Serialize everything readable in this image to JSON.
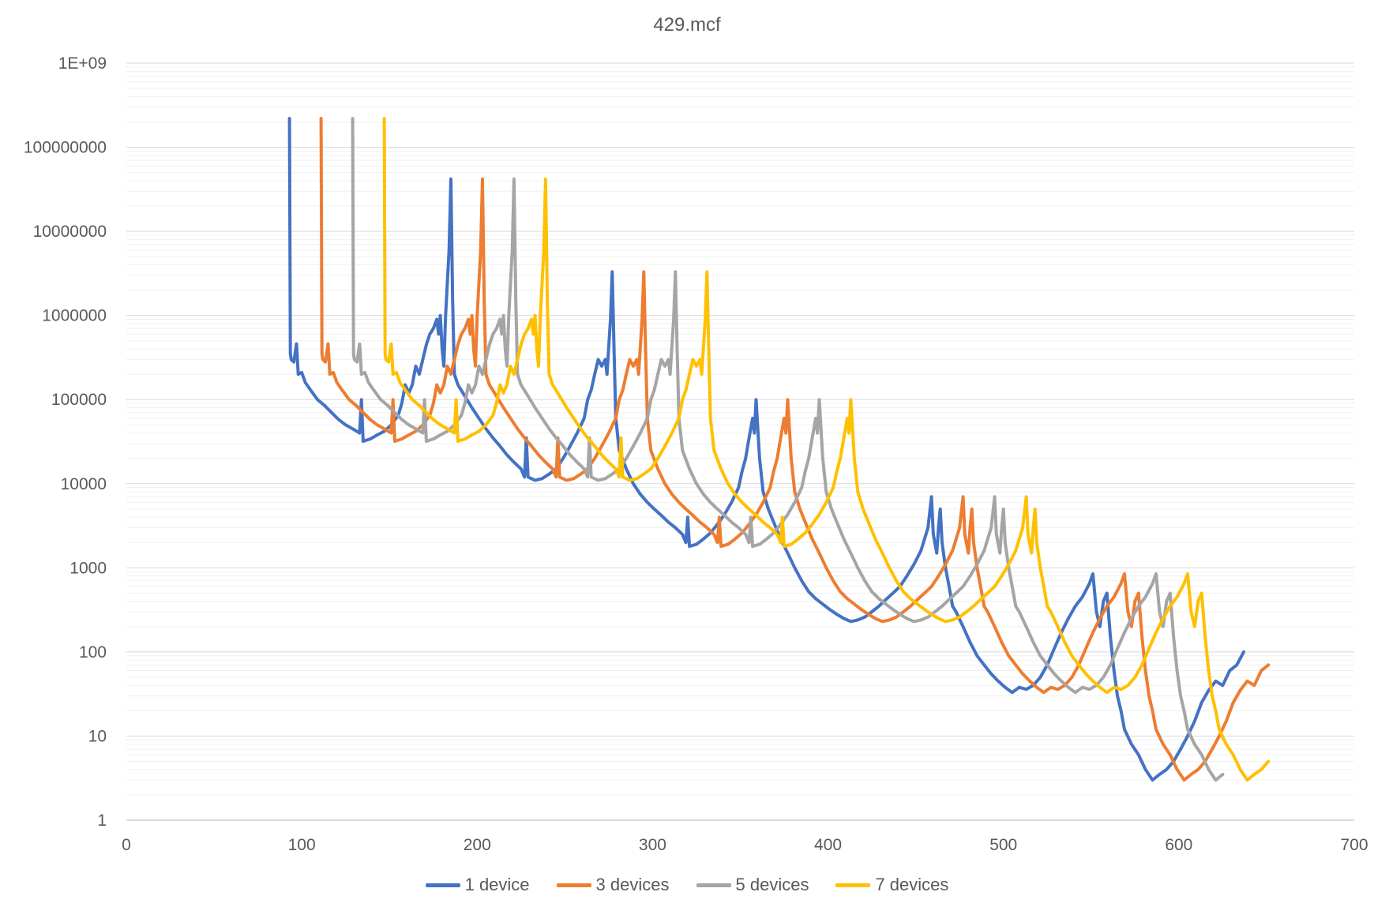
{
  "chart_data": {
    "type": "line",
    "title": "429.mcf",
    "xlabel": "",
    "ylabel": "",
    "xlim": [
      0,
      700
    ],
    "x_ticks": [
      "0",
      "100",
      "200",
      "300",
      "400",
      "500",
      "600",
      "700"
    ],
    "y_scale": "log",
    "ylim": [
      1,
      1000000000
    ],
    "y_ticks": [
      "1",
      "10",
      "100",
      "1000",
      "10000",
      "100000",
      "1000000",
      "10000000",
      "100000000",
      "1E+09"
    ],
    "grid": true,
    "legend": "bottom",
    "base_profile": [
      [
        0,
        220000000
      ],
      [
        0.5,
        350000
      ],
      [
        1,
        300000
      ],
      [
        2.5,
        280000
      ],
      [
        4,
        460000
      ],
      [
        5,
        200000
      ],
      [
        7,
        210000
      ],
      [
        9,
        160000
      ],
      [
        12,
        130000
      ],
      [
        16,
        100000
      ],
      [
        20,
        85000
      ],
      [
        24,
        70000
      ],
      [
        28,
        58000
      ],
      [
        32,
        50000
      ],
      [
        36,
        45000
      ],
      [
        40,
        40000
      ],
      [
        41,
        100000
      ],
      [
        42,
        32000
      ],
      [
        46,
        34000
      ],
      [
        50,
        38000
      ],
      [
        54,
        42000
      ],
      [
        58,
        50000
      ],
      [
        62,
        65000
      ],
      [
        64,
        90000
      ],
      [
        66,
        150000
      ],
      [
        68,
        120000
      ],
      [
        70,
        150000
      ],
      [
        72,
        250000
      ],
      [
        74,
        200000
      ],
      [
        76,
        300000
      ],
      [
        78,
        450000
      ],
      [
        80,
        600000
      ],
      [
        82,
        700000
      ],
      [
        84,
        900000
      ],
      [
        85,
        600000
      ],
      [
        86,
        1000000
      ],
      [
        87,
        400000
      ],
      [
        88,
        250000
      ],
      [
        89,
        1000000
      ],
      [
        91,
        6000000
      ],
      [
        92,
        42000000
      ],
      [
        93,
        1500000
      ],
      [
        94,
        200000
      ],
      [
        96,
        150000
      ],
      [
        100,
        110000
      ],
      [
        104,
        80000
      ],
      [
        108,
        60000
      ],
      [
        112,
        45000
      ],
      [
        116,
        35000
      ],
      [
        120,
        28000
      ],
      [
        124,
        22000
      ],
      [
        128,
        18000
      ],
      [
        132,
        15000
      ],
      [
        134,
        12000
      ],
      [
        135,
        35000
      ],
      [
        136,
        12000
      ],
      [
        140,
        11000
      ],
      [
        144,
        11500
      ],
      [
        148,
        13000
      ],
      [
        152,
        15000
      ],
      [
        156,
        20000
      ],
      [
        160,
        28000
      ],
      [
        164,
        40000
      ],
      [
        168,
        60000
      ],
      [
        170,
        100000
      ],
      [
        172,
        130000
      ],
      [
        174,
        200000
      ],
      [
        176,
        300000
      ],
      [
        178,
        250000
      ],
      [
        180,
        300000
      ],
      [
        181,
        200000
      ],
      [
        183,
        900000
      ],
      [
        184,
        3300000
      ],
      [
        185,
        400000
      ],
      [
        186,
        60000
      ],
      [
        188,
        25000
      ],
      [
        192,
        15000
      ],
      [
        196,
        10000
      ],
      [
        200,
        7500
      ],
      [
        204,
        6000
      ],
      [
        208,
        5000
      ],
      [
        212,
        4200
      ],
      [
        216,
        3500
      ],
      [
        220,
        3000
      ],
      [
        224,
        2500
      ],
      [
        226,
        2000
      ],
      [
        227,
        4000
      ],
      [
        228,
        1800
      ],
      [
        232,
        1900
      ],
      [
        236,
        2200
      ],
      [
        240,
        2600
      ],
      [
        244,
        3300
      ],
      [
        248,
        4300
      ],
      [
        252,
        6000
      ],
      [
        256,
        9000
      ],
      [
        258,
        14000
      ],
      [
        260,
        20000
      ],
      [
        262,
        35000
      ],
      [
        264,
        60000
      ],
      [
        265,
        40000
      ],
      [
        266,
        100000
      ],
      [
        268,
        20000
      ],
      [
        270,
        8000
      ],
      [
        273,
        5000
      ],
      [
        276,
        3500
      ],
      [
        280,
        2200
      ],
      [
        284,
        1500
      ],
      [
        288,
        1000
      ],
      [
        292,
        700
      ],
      [
        296,
        520
      ],
      [
        300,
        430
      ],
      [
        304,
        370
      ],
      [
        308,
        320
      ],
      [
        312,
        280
      ],
      [
        316,
        250
      ],
      [
        320,
        230
      ],
      [
        324,
        240
      ],
      [
        328,
        260
      ],
      [
        332,
        300
      ],
      [
        336,
        350
      ],
      [
        340,
        420
      ],
      [
        344,
        500
      ],
      [
        348,
        600
      ],
      [
        352,
        800
      ],
      [
        356,
        1100
      ],
      [
        360,
        1600
      ],
      [
        364,
        3000
      ],
      [
        366,
        7000
      ],
      [
        367,
        2500
      ],
      [
        369,
        1500
      ],
      [
        370,
        3000
      ],
      [
        371,
        5000
      ],
      [
        372,
        2000
      ],
      [
        374,
        1000
      ],
      [
        376,
        600
      ],
      [
        378,
        350
      ],
      [
        380,
        300
      ],
      [
        384,
        200
      ],
      [
        388,
        130
      ],
      [
        392,
        90
      ],
      [
        396,
        70
      ],
      [
        400,
        55
      ],
      [
        404,
        45
      ],
      [
        408,
        38
      ],
      [
        412,
        33
      ],
      [
        416,
        38
      ],
      [
        420,
        36
      ],
      [
        424,
        40
      ],
      [
        428,
        50
      ],
      [
        432,
        70
      ],
      [
        436,
        110
      ],
      [
        440,
        170
      ],
      [
        444,
        250
      ],
      [
        448,
        350
      ],
      [
        452,
        450
      ],
      [
        456,
        650
      ],
      [
        458,
        850
      ],
      [
        460,
        300
      ],
      [
        462,
        200
      ],
      [
        464,
        400
      ],
      [
        466,
        500
      ],
      [
        468,
        150
      ],
      [
        470,
        60
      ],
      [
        472,
        30
      ],
      [
        474,
        20
      ],
      [
        476,
        12
      ],
      [
        480,
        8
      ],
      [
        484,
        6
      ],
      [
        488,
        4
      ],
      [
        492,
        3
      ],
      [
        496,
        3.5
      ],
      [
        500,
        4
      ],
      [
        504,
        5
      ],
      [
        508,
        7
      ],
      [
        512,
        10
      ],
      [
        516,
        15
      ],
      [
        520,
        25
      ],
      [
        524,
        35
      ],
      [
        528,
        45
      ],
      [
        532,
        40
      ],
      [
        536,
        60
      ],
      [
        540,
        70
      ],
      [
        544,
        100
      ]
    ],
    "series": [
      {
        "name": "1 device",
        "offset": 93,
        "end": 651,
        "color": "#4472C4"
      },
      {
        "name": "3 devices",
        "offset": 111,
        "end": 651,
        "color": "#ED7D31"
      },
      {
        "name": "5 devices",
        "offset": 129,
        "end": 625,
        "color": "#A5A5A5"
      },
      {
        "name": "7 devices",
        "offset": 147,
        "end": 651,
        "color": "#FFC000"
      }
    ]
  }
}
